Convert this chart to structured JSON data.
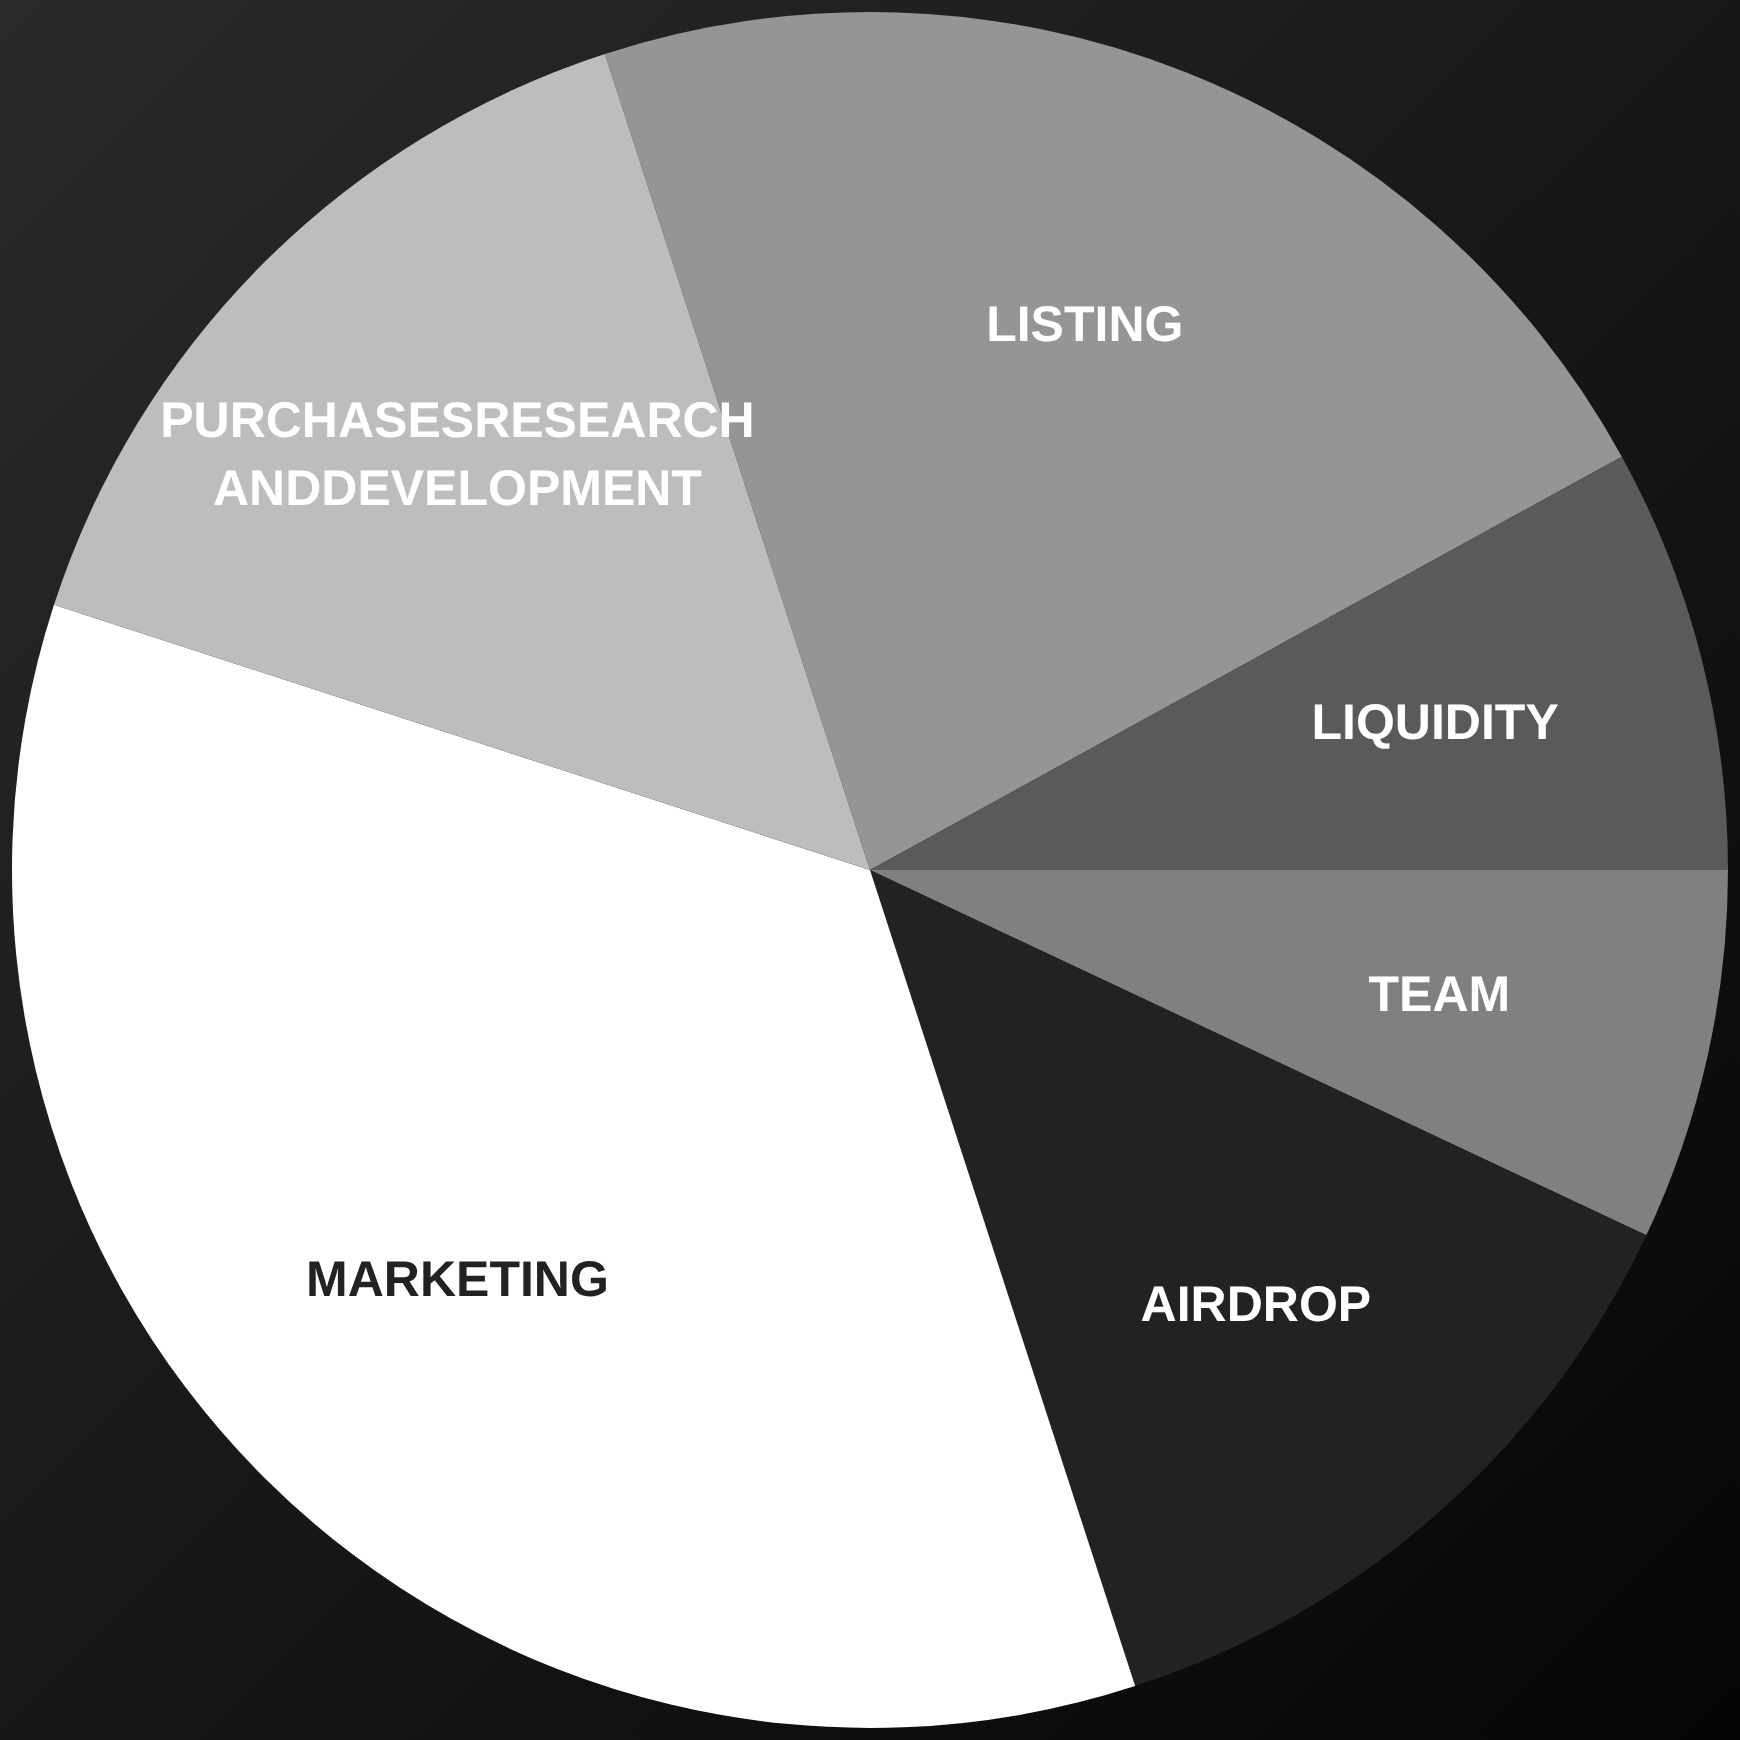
{
  "chart_data": {
    "type": "pie",
    "categories": [
      "LISTING",
      "LIQUIDITY",
      "TEAM",
      "AIRDROP",
      "MARKETING",
      "PURCHASESRESEARCH ANDDEVELOPMENT"
    ],
    "values": [
      22,
      8,
      7,
      13,
      35,
      15
    ],
    "colors": [
      "#959595",
      "#5a5a5a",
      "#808080",
      "#222222",
      "#ffffff",
      "#bdbdbd"
    ],
    "legend": false
  }
}
